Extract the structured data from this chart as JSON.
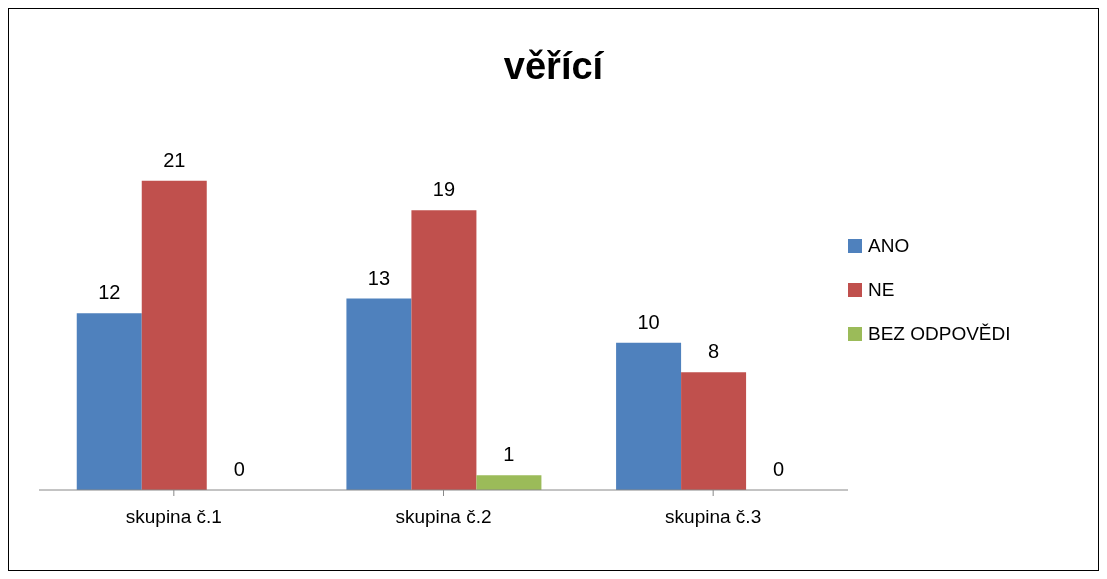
{
  "chart_data": {
    "type": "bar",
    "title": "věřící",
    "categories": [
      "skupina č.1",
      "skupina č.2",
      "skupina č.3"
    ],
    "series": [
      {
        "name": "ANO",
        "color": "#4f81bd",
        "values": [
          12,
          13,
          10
        ]
      },
      {
        "name": "NE",
        "color": "#c0504d",
        "values": [
          21,
          19,
          8
        ]
      },
      {
        "name": "BEZ ODPOVĚDI",
        "color": "#9bbb59",
        "values": [
          0,
          1,
          0
        ]
      }
    ],
    "data_labels": true,
    "legend": "right",
    "grid": false
  }
}
